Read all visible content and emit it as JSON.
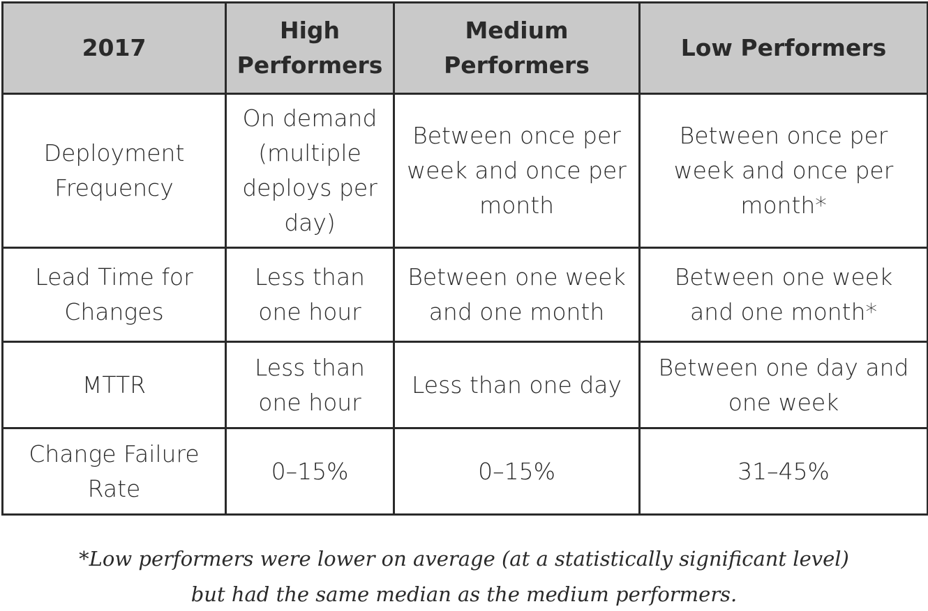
{
  "table": {
    "header": [
      "2017",
      "High Performers",
      "Medium Performers",
      "Low Performers"
    ],
    "rows": [
      [
        "Deployment Frequency",
        "On demand (multiple deploys per day)",
        "Between once per week and once per month",
        "Between once per week and once per month*"
      ],
      [
        "Lead Time for Changes",
        "Less than one hour",
        "Between one week and one month",
        "Between one week and one month*"
      ],
      [
        "MTTR",
        "Less than one hour",
        "Less than one day",
        "Between one day and one week"
      ],
      [
        "Change Failure Rate",
        "0–15%",
        "0–15%",
        "31–45%"
      ]
    ]
  },
  "footnote": [
    "*Low performers were lower on average (at a statistically significant level)",
    "but had the same median as the medium performers."
  ]
}
